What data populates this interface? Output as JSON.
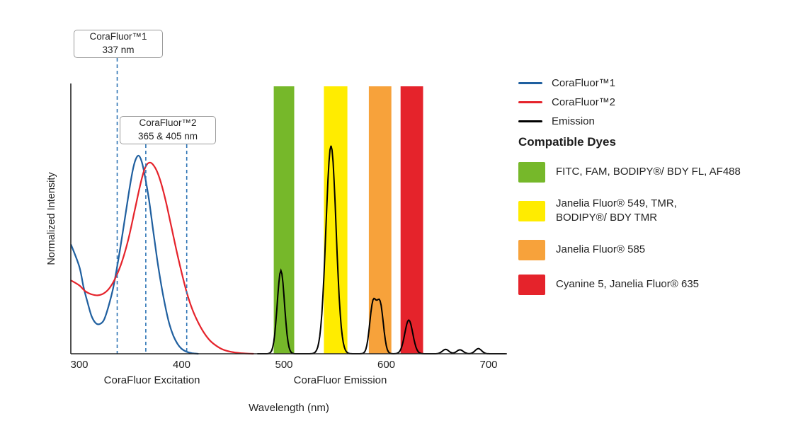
{
  "chart_data": {
    "type": "line",
    "title": "",
    "xlabel": "Wavelength (nm)",
    "ylabel": "Normalized Intensity",
    "x_ticks": [
      300,
      400,
      500,
      600,
      700
    ],
    "xlim": [
      292,
      718
    ],
    "ylim": [
      0,
      1.37
    ],
    "grid": false,
    "legend_position": "right",
    "axis_section_labels": [
      {
        "text": "CoraFluor Excitation",
        "center_nm": 371
      },
      {
        "text": "CoraFluor Emission",
        "center_nm": 555
      }
    ],
    "emission_filter_bands": [
      {
        "id": "green",
        "from_nm": 490,
        "to_nm": 510,
        "color": "#76b82a"
      },
      {
        "id": "yellow",
        "from_nm": 539,
        "to_nm": 562,
        "color": "#ffec00"
      },
      {
        "id": "orange",
        "from_nm": 583,
        "to_nm": 605,
        "color": "#f7a23b"
      },
      {
        "id": "red",
        "from_nm": 614,
        "to_nm": 636,
        "color": "#e5232b"
      }
    ],
    "series": [
      {
        "name": "CoraFluor™1",
        "kind": "excitation",
        "color": "#1f5f9f",
        "points": [
          [
            292,
            0.55
          ],
          [
            300,
            0.44
          ],
          [
            304,
            0.34
          ],
          [
            308,
            0.26
          ],
          [
            312,
            0.19
          ],
          [
            316,
            0.155
          ],
          [
            320,
            0.15
          ],
          [
            324,
            0.17
          ],
          [
            328,
            0.23
          ],
          [
            333,
            0.33
          ],
          [
            338,
            0.47
          ],
          [
            343,
            0.63
          ],
          [
            348,
            0.8
          ],
          [
            352,
            0.92
          ],
          [
            355,
            0.98
          ],
          [
            358,
            1.0
          ],
          [
            361,
            0.97
          ],
          [
            364,
            0.9
          ],
          [
            368,
            0.78
          ],
          [
            372,
            0.63
          ],
          [
            376,
            0.48
          ],
          [
            380,
            0.35
          ],
          [
            384,
            0.24
          ],
          [
            388,
            0.15
          ],
          [
            392,
            0.09
          ],
          [
            396,
            0.05
          ],
          [
            400,
            0.025
          ],
          [
            405,
            0.01
          ],
          [
            410,
            0.003
          ],
          [
            416,
            0
          ]
        ]
      },
      {
        "name": "CoraFluor™2",
        "kind": "excitation",
        "color": "#e5232b",
        "points": [
          [
            292,
            0.37
          ],
          [
            300,
            0.345
          ],
          [
            306,
            0.315
          ],
          [
            312,
            0.3
          ],
          [
            318,
            0.295
          ],
          [
            324,
            0.305
          ],
          [
            330,
            0.335
          ],
          [
            336,
            0.39
          ],
          [
            342,
            0.47
          ],
          [
            348,
            0.58
          ],
          [
            354,
            0.72
          ],
          [
            359,
            0.84
          ],
          [
            363,
            0.92
          ],
          [
            366,
            0.955
          ],
          [
            369,
            0.965
          ],
          [
            372,
            0.955
          ],
          [
            376,
            0.92
          ],
          [
            380,
            0.86
          ],
          [
            385,
            0.76
          ],
          [
            390,
            0.64
          ],
          [
            395,
            0.52
          ],
          [
            400,
            0.41
          ],
          [
            405,
            0.31
          ],
          [
            410,
            0.23
          ],
          [
            416,
            0.16
          ],
          [
            422,
            0.105
          ],
          [
            428,
            0.065
          ],
          [
            434,
            0.04
          ],
          [
            440,
            0.022
          ],
          [
            448,
            0.01
          ],
          [
            458,
            0.003
          ],
          [
            470,
            0
          ]
        ]
      },
      {
        "name": "Emission",
        "kind": "emission",
        "color": "#000000",
        "peaks": [
          {
            "center_nm": 497,
            "height": 0.42,
            "sigma": 5
          },
          {
            "center_nm": 546,
            "height": 1.05,
            "sigma": 7
          },
          {
            "center_nm": 587,
            "height": 0.25,
            "sigma": 4.5
          },
          {
            "center_nm": 594,
            "height": 0.245,
            "sigma": 4.5
          },
          {
            "center_nm": 622,
            "height": 0.17,
            "sigma": 5.5
          },
          {
            "center_nm": 658,
            "height": 0.022,
            "sigma": 4.5
          },
          {
            "center_nm": 672,
            "height": 0.02,
            "sigma": 4.5
          },
          {
            "center_nm": 690,
            "height": 0.026,
            "sigma": 4.5
          }
        ]
      }
    ],
    "markers": [
      {
        "label": "CoraFluor™1",
        "sublabel": "337 nm",
        "lines_nm": [
          337
        ]
      },
      {
        "label": "CoraFluor™2",
        "sublabel": "365 & 405 nm",
        "lines_nm": [
          365,
          405
        ]
      }
    ],
    "marker_line_color": "#2e74b5"
  },
  "legend": {
    "items": [
      {
        "label": "CoraFluor™1",
        "color": "#1f5f9f"
      },
      {
        "label": "CoraFluor™2",
        "color": "#e5232b"
      },
      {
        "label": "Emission",
        "color": "#000000"
      }
    ],
    "dyes_heading": "Compatible Dyes",
    "dyes": [
      {
        "color": "#76b82a",
        "label": "FITC, FAM, BODIPY®/ BDY FL, AF488"
      },
      {
        "color": "#ffec00",
        "label": "Janelia Fluor® 549, TMR,\nBODIPY®/ BDY TMR"
      },
      {
        "color": "#f7a23b",
        "label": "Janelia Fluor® 585"
      },
      {
        "color": "#e5232b",
        "label": "Cyanine 5, Janelia Fluor® 635"
      }
    ]
  }
}
